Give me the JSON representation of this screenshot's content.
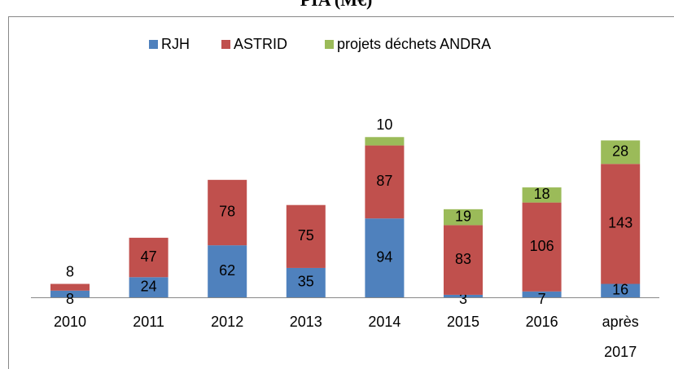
{
  "chart_data": {
    "type": "stacked_bar",
    "title": "PIA (M€)",
    "categories": [
      "2010",
      "2011",
      "2012",
      "2013",
      "2014",
      "2015",
      "2016",
      "après 2017"
    ],
    "series": [
      {
        "name": "RJH",
        "color": "#4f81bd",
        "values": [
          8,
          24,
          62,
          35,
          94,
          3,
          7,
          16
        ]
      },
      {
        "name": "ASTRID",
        "color": "#c0504d",
        "values": [
          8,
          47,
          78,
          75,
          87,
          83,
          106,
          143
        ]
      },
      {
        "name": "projets déchets ANDRA",
        "color": "#9bbb59",
        "values": [
          null,
          null,
          null,
          null,
          10,
          19,
          18,
          28
        ]
      }
    ],
    "legend": "top"
  }
}
